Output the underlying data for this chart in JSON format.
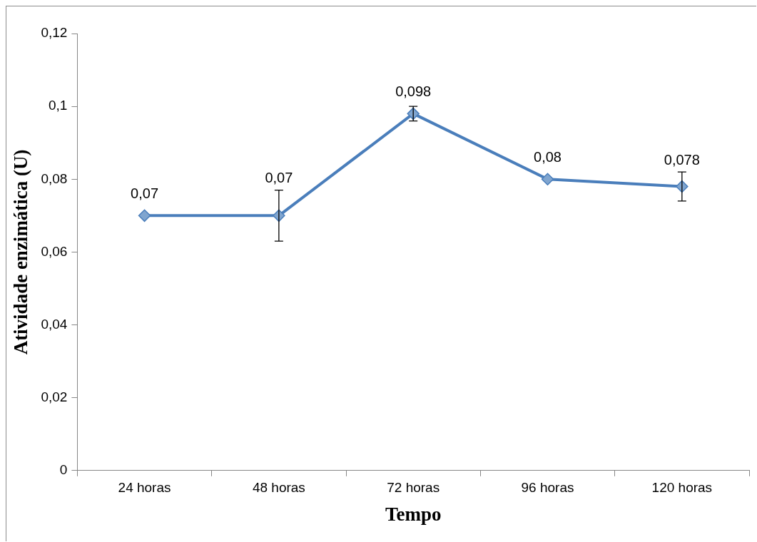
{
  "chart_data": {
    "type": "line",
    "xlabel": "Tempo",
    "ylabel": "Atividade enzimática (U)",
    "categories": [
      "24 horas",
      "48 horas",
      "72 horas",
      "96 horas",
      "120 horas"
    ],
    "series": [
      {
        "color": "#4a7ebb",
        "values": [
          0.07,
          0.07,
          0.098,
          0.08,
          0.078
        ],
        "errors": [
          null,
          0.007,
          0.002,
          null,
          0.004
        ],
        "value_labels": [
          "0,07",
          "0,07",
          "0,098",
          "0,08",
          "0,078"
        ]
      }
    ],
    "ylim": [
      0,
      0.12
    ],
    "yticks": [
      {
        "value": 0,
        "label": "0"
      },
      {
        "value": 0.02,
        "label": "0,02"
      },
      {
        "value": 0.04,
        "label": "0,04"
      },
      {
        "value": 0.06,
        "label": "0,06"
      },
      {
        "value": 0.08,
        "label": "0,08"
      },
      {
        "value": 0.1,
        "label": "0,1"
      },
      {
        "value": 0.12,
        "label": "0,12"
      }
    ],
    "grid": false,
    "legend": false,
    "marker": "diamond",
    "line_style": "solid"
  }
}
